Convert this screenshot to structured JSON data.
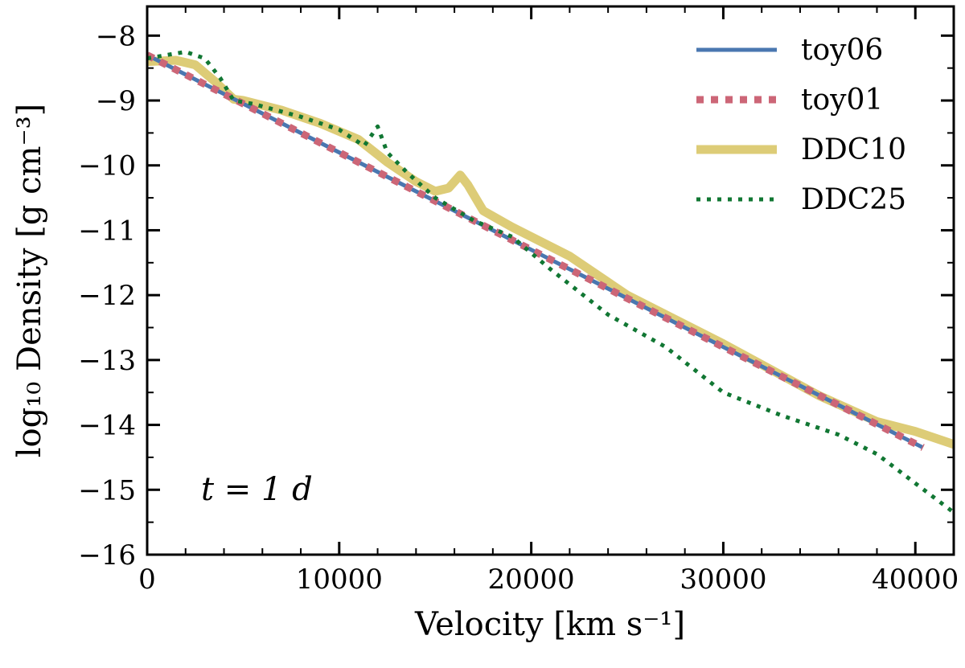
{
  "chart_data": {
    "type": "line",
    "title": "",
    "xlabel": "Velocity [km s⁻¹]",
    "ylabel": "log₁₀ Density [g cm⁻³]",
    "xlim": [
      0,
      42000
    ],
    "ylim": [
      -16,
      -7.55
    ],
    "xticks": [
      0,
      10000,
      20000,
      30000,
      40000
    ],
    "yticks": [
      -16,
      -15,
      -14,
      -13,
      -12,
      -11,
      -10,
      -9,
      -8
    ],
    "xtick_labels": [
      "0",
      "10000",
      "20000",
      "30000",
      "40000"
    ],
    "ytick_labels": [
      "−16",
      "−15",
      "−14",
      "−13",
      "−12",
      "−11",
      "−10",
      "−9",
      "−8"
    ],
    "grid": false,
    "legend_position": "top-right",
    "annotation": "t = 1 d",
    "series": [
      {
        "name": "toy06",
        "color": "#4a77b0",
        "style": "solid",
        "x": [
          0,
          10000,
          20000,
          30000,
          40400
        ],
        "y": [
          -8.3,
          -9.8,
          -11.3,
          -12.8,
          -14.35
        ]
      },
      {
        "name": "toy01",
        "color": "#cc6677",
        "style": "dashed",
        "x": [
          0,
          10000,
          20000,
          30000,
          40400
        ],
        "y": [
          -8.3,
          -9.8,
          -11.3,
          -12.8,
          -14.35
        ]
      },
      {
        "name": "DDC10",
        "color": "#ddcc77",
        "style": "thick",
        "x": [
          0,
          1500,
          2500,
          3500,
          4500,
          5000,
          7000,
          9000,
          11000,
          12500,
          14000,
          15000,
          15700,
          16300,
          16700,
          17500,
          19000,
          22000,
          25000,
          30000,
          35000,
          38000,
          40000,
          42000
        ],
        "y": [
          -8.4,
          -8.38,
          -8.45,
          -8.7,
          -8.98,
          -9.0,
          -9.15,
          -9.35,
          -9.6,
          -9.95,
          -10.25,
          -10.4,
          -10.35,
          -10.15,
          -10.3,
          -10.7,
          -10.95,
          -11.4,
          -12.0,
          -12.75,
          -13.55,
          -13.95,
          -14.1,
          -14.3
        ]
      },
      {
        "name": "DDC25",
        "color": "#117733",
        "style": "dotted",
        "x": [
          0,
          1000,
          2000,
          3000,
          3800,
          4500,
          5500,
          8000,
          10000,
          11300,
          12000,
          12500,
          13500,
          15000,
          17000,
          19000,
          21000,
          24000,
          27000,
          30000,
          33000,
          36000,
          38000,
          40000,
          42000
        ],
        "y": [
          -8.35,
          -8.3,
          -8.25,
          -8.35,
          -8.65,
          -9.0,
          -9.05,
          -9.25,
          -9.45,
          -9.7,
          -9.4,
          -9.8,
          -10.1,
          -10.5,
          -10.85,
          -11.1,
          -11.6,
          -12.3,
          -12.8,
          -13.5,
          -13.85,
          -14.15,
          -14.45,
          -14.9,
          -15.35
        ]
      }
    ]
  }
}
